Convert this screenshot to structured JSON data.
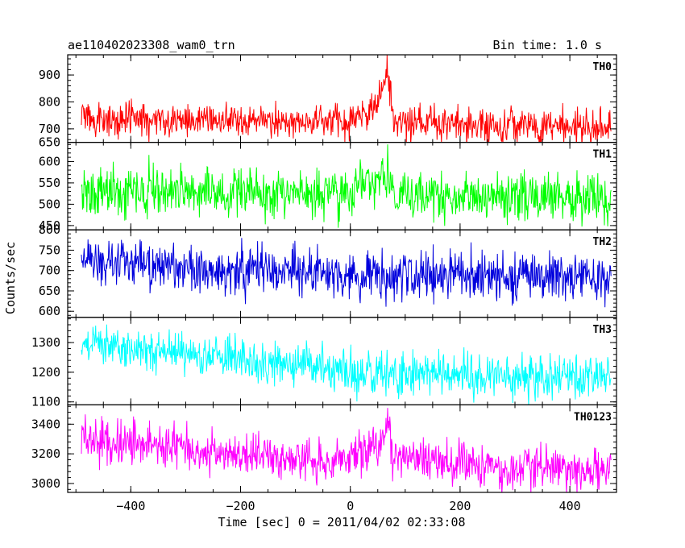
{
  "header": {
    "title": "ae110402023308_wam0_trn",
    "bin_time": "Bin time: 1.0 s"
  },
  "chart_data": {
    "type": "line",
    "title": "ae110402023308_wam0_trn",
    "xlabel": "Time [sec] 0 = 2011/04/02 02:33:08",
    "ylabel": "Counts/sec",
    "xlim": [
      -515,
      485
    ],
    "x_ticks": [
      -400,
      -200,
      0,
      200,
      400
    ],
    "x_tick_labels": [
      "−400",
      "−200",
      "0",
      "200",
      "400"
    ],
    "x_range": [
      -490,
      475
    ],
    "grid": false,
    "legend": "none",
    "panels": [
      {
        "name": "TH0",
        "color": "#ff0000",
        "ylim": [
          650,
          975
        ],
        "y_ticks": [
          650,
          700,
          800,
          900
        ],
        "baseline": [
          [
            -490,
            735
          ],
          [
            0,
            728
          ],
          [
            40,
            760
          ],
          [
            60,
            850
          ],
          [
            65,
            930
          ],
          [
            70,
            900
          ],
          [
            80,
            720
          ],
          [
            200,
            715
          ],
          [
            475,
            710
          ]
        ],
        "noise": 32,
        "spike": {
          "x": 67,
          "y": 975
        }
      },
      {
        "name": "TH1",
        "color": "#00ff00",
        "ylim": [
          440,
          645
        ],
        "y_ticks": [
          450,
          500,
          550,
          600
        ],
        "baseline": [
          [
            -490,
            530
          ],
          [
            0,
            525
          ],
          [
            10,
            550
          ],
          [
            60,
            560
          ],
          [
            70,
            555
          ],
          [
            90,
            520
          ],
          [
            475,
            515
          ]
        ],
        "noise": 28,
        "spike": {
          "x": 68,
          "y": 640
        }
      },
      {
        "name": "TH2",
        "color": "#0000dd",
        "ylim": [
          585,
          800
        ],
        "y_ticks": [
          600,
          650,
          700,
          750,
          800
        ],
        "baseline": [
          [
            -490,
            725
          ],
          [
            -300,
            705
          ],
          [
            0,
            690
          ],
          [
            475,
            685
          ]
        ],
        "noise": 30,
        "spike": null
      },
      {
        "name": "TH3",
        "color": "#00ffff",
        "ylim": [
          1090,
          1385
        ],
        "y_ticks": [
          1100,
          1200,
          1300
        ],
        "baseline": [
          [
            -490,
            1300
          ],
          [
            -200,
            1240
          ],
          [
            0,
            1200
          ],
          [
            475,
            1180
          ]
        ],
        "noise": 38,
        "spike": null
      },
      {
        "name": "TH0123",
        "color": "#ff00ff",
        "ylim": [
          2940,
          3530
        ],
        "y_ticks": [
          3000,
          3200,
          3400
        ],
        "baseline": [
          [
            -490,
            3300
          ],
          [
            -200,
            3180
          ],
          [
            0,
            3150
          ],
          [
            10,
            3220
          ],
          [
            60,
            3250
          ],
          [
            68,
            3400
          ],
          [
            80,
            3150
          ],
          [
            475,
            3080
          ]
        ],
        "noise": 75,
        "spike": {
          "x": 68,
          "y": 3510
        }
      }
    ]
  }
}
